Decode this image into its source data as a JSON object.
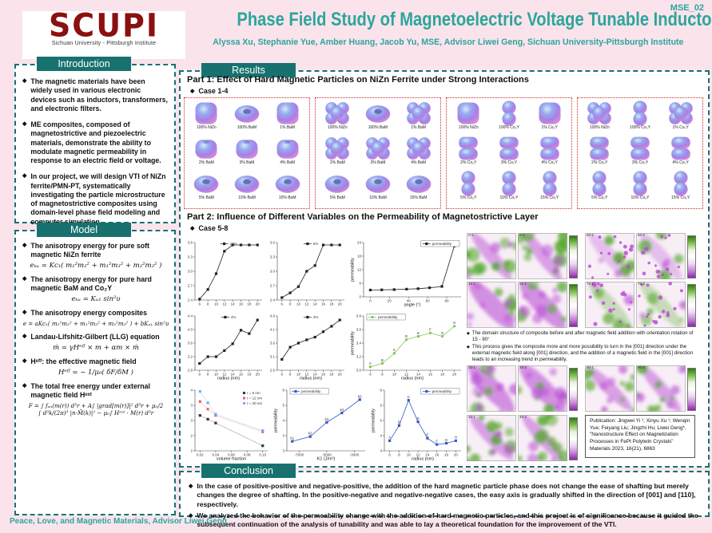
{
  "poster": {
    "code": "MSE_02",
    "title": "Phase Field Study of Magnetoelectric Voltage Tunable Inductors",
    "authors": "Alyssa Xu, Stephanie Yue, Amber Huang, Jacob Yu, MSE, Advisor Liwei Geng, Sichuan University-Pittsburgh Institute",
    "footer": "Peace, Love, and Magnetic Materials, Advisor Liwei Geng",
    "logo": {
      "text": "SCUPI",
      "caption": "Sichuan University - Pittsburgh Institute"
    }
  },
  "colors": {
    "accent_teal": "#17726f",
    "title_teal": "#2ba69b",
    "logo_red": "#8b1010",
    "panel_border_red": "#cc2b2b",
    "background_pink": "#fbe3ec",
    "domain_green": "#55a82c",
    "domain_purple": "#bb4fd6"
  },
  "introduction": {
    "heading": "Introduction",
    "bullets": [
      "The magnetic materials have been widely used in various electronic devices such as inductors, transformers, and electronic filters.",
      "ME composites, composed of magnetostrictive and piezoelectric materials, demonstrate the ability to modulate magnetic permeability in response to an electric field or voltage.",
      "In our project, we will design VTI of NiZn ferrite/PMN-PT, systematically investigating the particle microstructure of magnetostrictive composites using domain-level phase field modeling and computer simulation."
    ]
  },
  "model": {
    "heading": "Model",
    "items": [
      {
        "type": "bullet",
        "text": "The anisotropy energy for pure soft magnetic NiZn ferrite"
      },
      {
        "type": "eq",
        "text": "eₖᵤ = Kc₁( m₁²m₂² + m₁²m₃² + m₂²m₃² )"
      },
      {
        "type": "bullet",
        "text": "The anisotropy energy for pure hard magnetic BaM and Co₂Y"
      },
      {
        "type": "eq",
        "text": "eₖᵤ = Kᵤ₁ sin²υ"
      },
      {
        "type": "bullet",
        "text": "The anisotropy energy composites"
      },
      {
        "type": "eq",
        "small": true,
        "text": "e = aKc₁( m₁²m₂² + m₁²m₃² + m₂²m₃² ) + bKᵤ₁ sin²υ"
      },
      {
        "type": "bullet",
        "text": "Landau-Lifshitz-Gilbert (LLG) equation"
      },
      {
        "type": "eq",
        "text": "ṁ = γHᵉᶠᶠ × m + αm × ṁ"
      },
      {
        "type": "bullet",
        "text": "Hᵉᶠᶠ: the effective magnetic field"
      },
      {
        "type": "eq",
        "text": "Hᵉᶠᶠ = − 1/μ₀( δF/δM )"
      },
      {
        "type": "bullet",
        "text": "The total free energy under external magnetic field Hᵉˣᵗ"
      },
      {
        "type": "eq",
        "small": true,
        "text": "F = ∫ fₐₙ(m(r)) d³r + A∫ |grad[m(r)]|² d³r + μ₀/2\n∫ d³k/(2π)³ |n·M̃(k)|² − μ₀∫ Hᵉˣᵗ · M(r) d³r"
      }
    ]
  },
  "results": {
    "heading": "Results",
    "part1": {
      "title": "Part 1:  Effect of Hard Magnetic Particles on NiZn Ferrite under Strong Interactions",
      "case_label": "Case 1-4",
      "panels": [
        {
          "cells": [
            {
              "label": "100% NiZn",
              "shape": "cube"
            },
            {
              "label": "100% BaM",
              "shape": "torus"
            },
            {
              "label": "1% BaM",
              "shape": "cube"
            },
            {
              "label": "2% BaM",
              "shape": "squash"
            },
            {
              "label": "3% BaM",
              "shape": "squash"
            },
            {
              "label": "4% BaM",
              "shape": "squash"
            },
            {
              "label": "5% BaM",
              "shape": "torus"
            },
            {
              "label": "10% BaM",
              "shape": "torus"
            },
            {
              "label": "15% BaM",
              "shape": "torus"
            }
          ]
        },
        {
          "cells": [
            {
              "label": "100% NiZn",
              "shape": "flower"
            },
            {
              "label": "100% BaM",
              "shape": "torus"
            },
            {
              "label": "1% BaM",
              "shape": "flower"
            },
            {
              "label": "2% BaM",
              "shape": "flower"
            },
            {
              "label": "3% BaM",
              "shape": "flower"
            },
            {
              "label": "4% BaM",
              "shape": "flower"
            },
            {
              "label": "5% BaM",
              "shape": "torus"
            },
            {
              "label": "10% BaM",
              "shape": "torus"
            },
            {
              "label": "15% BaM",
              "shape": "torus"
            }
          ]
        },
        {
          "cells": [
            {
              "label": "100% NiZn",
              "shape": "cube"
            },
            {
              "label": "100% Co₂Y",
              "shape": "peanut"
            },
            {
              "label": "1% Co₂Y",
              "shape": "cube"
            },
            {
              "label": "2% Co₂Y",
              "shape": "barrel"
            },
            {
              "label": "3% Co₂Y",
              "shape": "barrel"
            },
            {
              "label": "4% Co₂Y",
              "shape": "barrel"
            },
            {
              "label": "5% Co₂Y",
              "shape": "peanut"
            },
            {
              "label": "10% Co₂Y",
              "shape": "peanut"
            },
            {
              "label": "15% Co₂Y",
              "shape": "peanut"
            }
          ]
        },
        {
          "cells": [
            {
              "label": "100% NiZn",
              "shape": "flower"
            },
            {
              "label": "100% Co₂Y",
              "shape": "peanut"
            },
            {
              "label": "1% Co₂Y",
              "shape": "flower"
            },
            {
              "label": "2% Co₂Y",
              "shape": "barrel"
            },
            {
              "label": "3% Co₂Y",
              "shape": "barrel"
            },
            {
              "label": "4% Co₂Y",
              "shape": "barrel"
            },
            {
              "label": "5% Co₂Y",
              "shape": "peanut"
            },
            {
              "label": "10% Co₂Y",
              "shape": "peanut"
            },
            {
              "label": "15% Co₂Y",
              "shape": "peanut"
            }
          ]
        }
      ]
    },
    "part2": {
      "title": "Part 2: Influence of Different Variables on the Permeability of Magnetostrictive Layer",
      "case_label": "Case 5-8",
      "notes": [
        "The domain structure of composite before and after magnetic field addition with orientation rotation of 15 - 90°",
        "This process gives the composite more and more possibility to turn in the [001] direction under the external magnetic field along [001] direction, and the addition of a magnetic field in the [001] direction leads to an increasing trend in permeability."
      ],
      "publication": "Publication: Jingwei Yi ¹; Xinyu Xu ¹; Wenqin Yue; Feiyang Liu; Jingzhi Hu; Liwei Geng*, \"Nanostructure Effect on Magnetization Processes in FePt Polytwin Crystals\" Materials 2023, 16(21), 6863",
      "domain_groups": [
        {
          "labels": [
            "0-1",
            "0-2"
          ],
          "mode": "green"
        },
        {
          "labels": [
            "60-1",
            "60-2"
          ],
          "mode": "dots"
        },
        {
          "labels": [
            "15-1",
            "15-2"
          ],
          "mode": "purple"
        },
        {
          "labels": [
            "75-1",
            "75-2"
          ],
          "mode": "dots2"
        },
        {
          "labels": [
            "30-1",
            "30-2"
          ],
          "mode": "purple"
        },
        {
          "labels": [
            "90-1",
            "90-2"
          ],
          "mode": "mixed"
        },
        {
          "labels": [
            "45-1",
            "45-2"
          ],
          "mode": "green"
        }
      ]
    }
  },
  "conclusion": {
    "heading": "Conclusion",
    "bullets": [
      "In the case of positive-positive and negative-positive, the addition of the hard magnetic particle phase does not change the ease of shafting but merely changes the degree of shafting. In the positive-negative and negative-negative cases, the easy axis is gradually shifted in the direction of [001] and [110], respectively.",
      "We analyzed the behavior of the permeability change with the addition of hard magnetic particles, and this project is of significance because it guided the subsequent continuation of the analysis of tunability and was able to lay a theoretical foundation for the improvement of the VTI."
    ]
  },
  "chart_data": [
    {
      "type": "line",
      "legend": "10%",
      "marker": "s",
      "color": "#222222",
      "legend_pos": "tc",
      "x": [
        6,
        8,
        10,
        12,
        14,
        16,
        18,
        20
      ],
      "xticks": [
        6,
        8,
        10,
        12,
        14,
        16,
        18,
        20
      ],
      "values": [
        2.42,
        2.62,
        2.95,
        3.42,
        3.55,
        3.55,
        3.55,
        3.55
      ],
      "ylim": [
        2.4,
        3.6
      ],
      "xlabel": "",
      "ylabel": ""
    },
    {
      "type": "line",
      "legend": "5%",
      "marker": "s",
      "color": "#222222",
      "legend_pos": "tc",
      "x": [
        6,
        8,
        10,
        12,
        14,
        16,
        18,
        20
      ],
      "xticks": [
        6,
        8,
        10,
        12,
        14,
        16,
        18,
        20
      ],
      "values": [
        2.45,
        2.55,
        2.68,
        3.0,
        3.12,
        3.55,
        3.55,
        3.55
      ],
      "ylim": [
        2.4,
        3.6
      ],
      "xlabel": "",
      "ylabel": ""
    },
    {
      "type": "line",
      "legend": "4%",
      "marker": "s",
      "color": "#222222",
      "legend_pos": "tc",
      "x": [
        6,
        8,
        10,
        12,
        14,
        16,
        18,
        20
      ],
      "xticks": [
        6,
        8,
        10,
        12,
        14,
        16,
        18,
        20
      ],
      "values": [
        3.0,
        3.2,
        3.2,
        3.38,
        3.58,
        3.98,
        3.88,
        4.28
      ],
      "ylim": [
        2.8,
        4.4
      ],
      "xlabel": "radius (nm)",
      "ylabel": ""
    },
    {
      "type": "line",
      "legend": "3%",
      "marker": "s",
      "color": "#222222",
      "legend_pos": "tc",
      "x": [
        6,
        8,
        10,
        12,
        14,
        16,
        18,
        20
      ],
      "xticks": [
        6,
        8,
        10,
        12,
        14,
        16,
        18,
        20
      ],
      "values": [
        3.0,
        3.45,
        3.6,
        3.72,
        3.82,
        4.02,
        4.22,
        4.45
      ],
      "ylim": [
        2.6,
        4.6
      ],
      "xlabel": "radius (nm)",
      "ylabel": ""
    },
    {
      "type": "line",
      "legend": "permeability",
      "marker": "s",
      "color": "#222222",
      "legend_pos": "tr",
      "legend_box": true,
      "x": [
        0,
        12,
        25,
        38,
        50,
        62,
        75,
        88
      ],
      "xticks": [
        0,
        20,
        40,
        60,
        80
      ],
      "values": [
        3.0,
        3.1,
        3.2,
        3.4,
        3.6,
        4.0,
        4.6,
        22.5
      ],
      "ylim": [
        0,
        24
      ],
      "xlabel": "angle (°)",
      "ylabel": "permeability"
    },
    {
      "type": "line",
      "legend": "permeability",
      "marker": "c",
      "color": "#7ec850",
      "legend_pos": "tl",
      "legend_box": true,
      "x": [
        6,
        8,
        10,
        12,
        14,
        16,
        18,
        20
      ],
      "xticks": [
        6,
        8,
        10,
        12,
        14,
        16,
        18,
        20
      ],
      "values": [
        3.05,
        3.1,
        3.25,
        3.45,
        3.5,
        3.55,
        3.5,
        3.65
      ],
      "point_labels": [
        "A",
        "B",
        "C",
        "D",
        "E",
        "F",
        "G",
        "H"
      ],
      "ylim": [
        3.0,
        3.8
      ],
      "xlabel": "radius (nm)",
      "ylabel": "permeability"
    },
    {
      "type": "scatter",
      "legend_pos": "tr",
      "x": [
        0.02,
        0.03,
        0.04,
        0.1
      ],
      "xticks": [
        0.02,
        0.04,
        0.06,
        0.08,
        0.1
      ],
      "series": [
        {
          "name": "r = 6 nm",
          "color": "#333333",
          "values": [
            3.0,
            2.85,
            2.7,
            1.8
          ]
        },
        {
          "name": "r = 12 nm",
          "color": "#e06666",
          "values": [
            3.55,
            3.25,
            3.0,
            2.35
          ]
        },
        {
          "name": "r = 20 nm",
          "color": "#7aa7f0",
          "values": [
            3.95,
            3.5,
            3.05,
            2.4
          ]
        }
      ],
      "ylim": [
        1.6,
        4.0
      ],
      "xlabel": "volume fraction",
      "ylabel": ""
    },
    {
      "type": "line",
      "legend": "permeability",
      "marker": "s",
      "color": "#3355cc",
      "legend_pos": "tl",
      "legend_box": true,
      "x": [
        -7500,
        -6200,
        -5000,
        -3900,
        -2600
      ],
      "xticks": [
        -7000,
        -5000,
        -3000
      ],
      "values": [
        3.1,
        3.35,
        4.1,
        4.6,
        5.3
      ],
      "point_labels": [
        "k1",
        "k2",
        "k3",
        "k4",
        "k5"
      ],
      "ylim": [
        2.6,
        5.8
      ],
      "xlabel": "K1 (J/m³)",
      "ylabel": "permeability"
    },
    {
      "type": "line",
      "legend": "permeability",
      "marker": "s",
      "color": "#3355cc",
      "legend_pos": "tr",
      "legend_box": true,
      "x": [
        6,
        8,
        10,
        12,
        14,
        16,
        18,
        20
      ],
      "xticks": [
        6,
        8,
        10,
        12,
        14,
        16,
        18,
        20
      ],
      "values": [
        4.0,
        4.6,
        5.6,
        4.75,
        4.1,
        3.85,
        3.9,
        4.0
      ],
      "point_labels": [
        "A",
        "B",
        "C",
        "D",
        "E",
        "F",
        "G",
        "H"
      ],
      "ylim": [
        3.6,
        6.0
      ],
      "xlabel": "radius (nm)",
      "ylabel": "permeability"
    }
  ]
}
